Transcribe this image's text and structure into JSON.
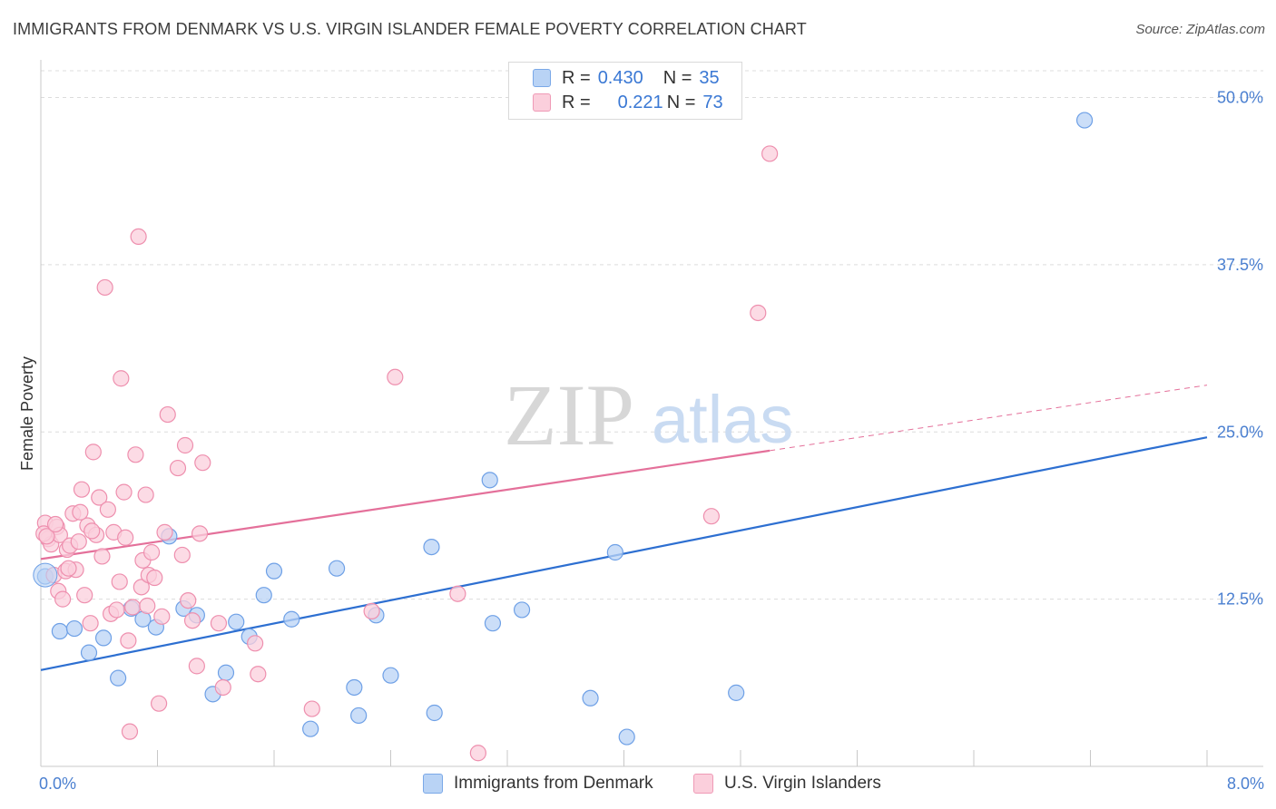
{
  "title": "IMMIGRANTS FROM DENMARK VS U.S. VIRGIN ISLANDER FEMALE POVERTY CORRELATION CHART",
  "source": "Source: ZipAtlas.com",
  "watermark": {
    "zip": "ZIP",
    "atlas": "atlas"
  },
  "legend": {
    "rows": [
      {
        "r_label": "R =",
        "r_value": "0.430",
        "n_label": "N =",
        "n_value": "35",
        "color": "#a9c8f0"
      },
      {
        "r_label": "R =",
        "r_value": "0.221",
        "n_label": "N =",
        "n_value": "73",
        "color": "#f7b8cb"
      }
    ]
  },
  "bottom_legend": [
    {
      "label": "Immigrants from Denmark",
      "color": "#b9d3f5"
    },
    {
      "label": "U.S. Virgin Islanders",
      "color": "#fbcfdc"
    }
  ],
  "chart_data": {
    "type": "scatter",
    "title": "IMMIGRANTS FROM DENMARK VS U.S. VIRGIN ISLANDER FEMALE POVERTY CORRELATION CHART",
    "xlabel": "",
    "ylabel": "Female Poverty",
    "xlim": [
      0,
      8
    ],
    "ylim": [
      0,
      52
    ],
    "x_tick_labels": [
      "0.0%",
      "8.0%"
    ],
    "y_ticks": [
      12.5,
      25,
      37.5,
      50
    ],
    "y_tick_labels": [
      "12.5%",
      "25.0%",
      "37.5%",
      "50.0%"
    ],
    "grid": true,
    "legend_position": "top-center",
    "series": [
      {
        "name": "Immigrants from Denmark",
        "color": "#6ea0e6",
        "fill": "#b9d3f5",
        "line_color": "#2d6fd1",
        "trend": {
          "x": [
            0,
            8
          ],
          "y": [
            7.2,
            24.6
          ]
        },
        "points": [
          [
            0.03,
            14.2
          ],
          [
            0.13,
            10.1
          ],
          [
            0.23,
            10.3
          ],
          [
            0.33,
            8.5
          ],
          [
            0.43,
            9.6
          ],
          [
            0.53,
            6.6
          ],
          [
            0.62,
            11.8
          ],
          [
            0.7,
            11.0
          ],
          [
            0.79,
            10.4
          ],
          [
            0.88,
            17.2
          ],
          [
            0.98,
            11.8
          ],
          [
            1.07,
            11.3
          ],
          [
            1.18,
            5.4
          ],
          [
            1.27,
            7.0
          ],
          [
            1.34,
            10.8
          ],
          [
            1.43,
            9.7
          ],
          [
            1.53,
            12.8
          ],
          [
            1.6,
            14.6
          ],
          [
            1.72,
            11.0
          ],
          [
            1.85,
            2.8
          ],
          [
            2.03,
            14.8
          ],
          [
            2.15,
            5.9
          ],
          [
            2.18,
            3.8
          ],
          [
            2.3,
            11.3
          ],
          [
            2.4,
            6.8
          ],
          [
            2.68,
            16.4
          ],
          [
            2.7,
            4.0
          ],
          [
            3.08,
            21.4
          ],
          [
            3.1,
            10.7
          ],
          [
            3.3,
            11.7
          ],
          [
            3.77,
            5.1
          ],
          [
            3.94,
            16.0
          ],
          [
            4.02,
            2.2
          ],
          [
            4.77,
            5.5
          ],
          [
            7.16,
            48.3
          ]
        ]
      },
      {
        "name": "U.S. Virgin Islanders",
        "color": "#ee8fae",
        "fill": "#fbcfdc",
        "line_color": "#e4709a",
        "trend": {
          "x": [
            0,
            5.0
          ],
          "y": [
            15.5,
            23.6
          ]
        },
        "trend_dashed": {
          "x": [
            5.0,
            8.0
          ],
          "y": [
            23.6,
            28.5
          ]
        },
        "points": [
          [
            0.03,
            18.2
          ],
          [
            0.05,
            17.0
          ],
          [
            0.07,
            16.6
          ],
          [
            0.09,
            14.3
          ],
          [
            0.11,
            17.9
          ],
          [
            0.12,
            13.1
          ],
          [
            0.13,
            17.3
          ],
          [
            0.15,
            12.5
          ],
          [
            0.17,
            14.6
          ],
          [
            0.18,
            16.2
          ],
          [
            0.2,
            16.5
          ],
          [
            0.22,
            18.9
          ],
          [
            0.24,
            14.7
          ],
          [
            0.26,
            16.8
          ],
          [
            0.28,
            20.7
          ],
          [
            0.3,
            12.8
          ],
          [
            0.32,
            18.0
          ],
          [
            0.34,
            10.7
          ],
          [
            0.36,
            23.5
          ],
          [
            0.38,
            17.3
          ],
          [
            0.4,
            20.1
          ],
          [
            0.42,
            15.7
          ],
          [
            0.44,
            35.8
          ],
          [
            0.46,
            19.2
          ],
          [
            0.48,
            11.4
          ],
          [
            0.5,
            17.5
          ],
          [
            0.52,
            11.7
          ],
          [
            0.54,
            13.8
          ],
          [
            0.55,
            29.0
          ],
          [
            0.57,
            20.5
          ],
          [
            0.6,
            9.4
          ],
          [
            0.61,
            2.6
          ],
          [
            0.63,
            11.9
          ],
          [
            0.65,
            23.3
          ],
          [
            0.67,
            39.6
          ],
          [
            0.69,
            13.4
          ],
          [
            0.7,
            15.4
          ],
          [
            0.72,
            20.3
          ],
          [
            0.74,
            14.3
          ],
          [
            0.76,
            16.0
          ],
          [
            0.78,
            14.1
          ],
          [
            0.81,
            4.7
          ],
          [
            0.83,
            11.2
          ],
          [
            0.85,
            17.5
          ],
          [
            0.87,
            26.3
          ],
          [
            0.94,
            22.3
          ],
          [
            0.97,
            15.8
          ],
          [
            0.99,
            24.0
          ],
          [
            1.01,
            12.4
          ],
          [
            1.04,
            10.9
          ],
          [
            1.07,
            7.5
          ],
          [
            1.09,
            17.4
          ],
          [
            1.11,
            22.7
          ],
          [
            1.22,
            10.7
          ],
          [
            1.25,
            5.9
          ],
          [
            1.47,
            9.2
          ],
          [
            1.49,
            6.9
          ],
          [
            1.86,
            4.3
          ],
          [
            2.27,
            11.6
          ],
          [
            2.43,
            29.1
          ],
          [
            2.86,
            12.9
          ],
          [
            3.0,
            1.0
          ],
          [
            4.6,
            18.7
          ],
          [
            4.92,
            33.9
          ],
          [
            5.0,
            45.8
          ],
          [
            0.02,
            17.4
          ],
          [
            0.04,
            17.2
          ],
          [
            0.19,
            14.8
          ],
          [
            0.27,
            19.0
          ],
          [
            0.35,
            17.6
          ],
          [
            0.58,
            17.1
          ],
          [
            0.73,
            12.0
          ],
          [
            0.1,
            18.1
          ]
        ]
      }
    ]
  }
}
